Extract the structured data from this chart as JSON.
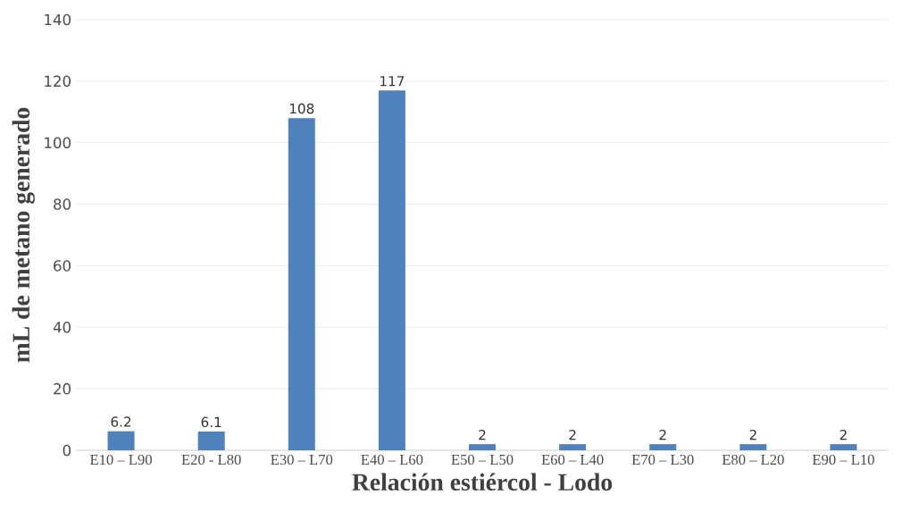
{
  "chart_data": {
    "type": "bar",
    "xlabel": "Relación estiércol - Lodo",
    "ylabel": "mL de metano generado",
    "categories": [
      "E10 – L90",
      "E20 - L80",
      "E30 – L70",
      "E40 – L60",
      "E50 – L50",
      "E60 – L40",
      "E70 – L30",
      "E80 – L20",
      "E90 – L10"
    ],
    "values": [
      6.2,
      6.1,
      108,
      117,
      2,
      2,
      2,
      2,
      2
    ],
    "value_labels": [
      "6.2",
      "6.1",
      "108",
      "117",
      "2",
      "2",
      "2",
      "2",
      "2"
    ],
    "color": "#4f81bd",
    "ylim": [
      0,
      140
    ],
    "yticks": [
      0,
      20,
      40,
      60,
      80,
      100,
      120,
      140
    ],
    "grid": "y"
  }
}
